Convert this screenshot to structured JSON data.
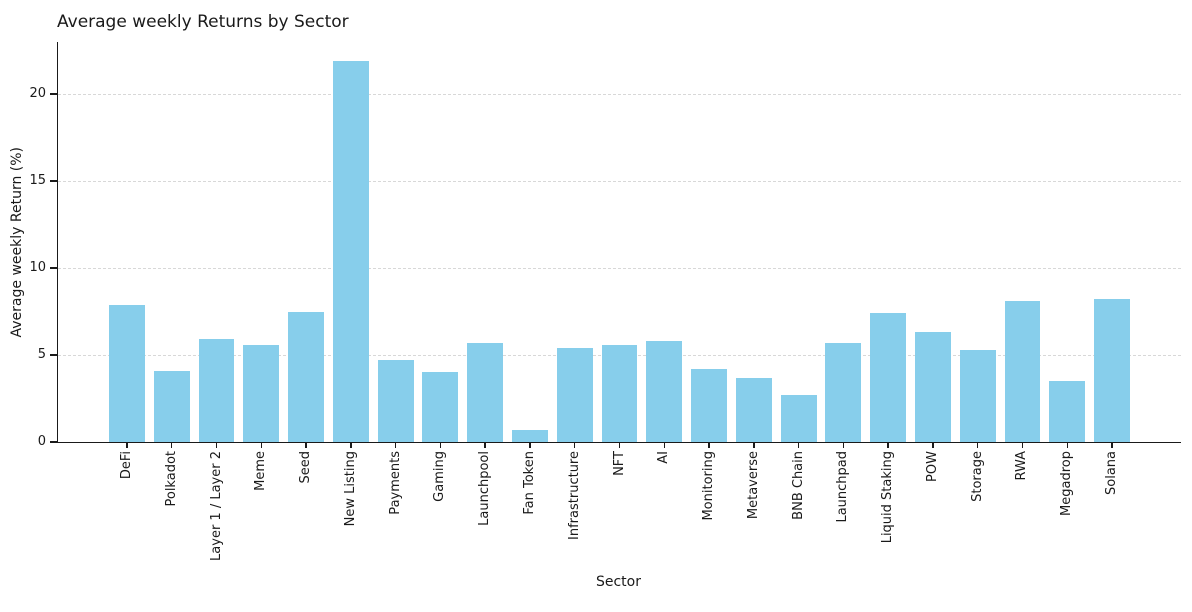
{
  "chart_data": {
    "type": "bar",
    "title": "Average weekly Returns by Sector",
    "xlabel": "Sector",
    "ylabel": "Average weekly Return (%)",
    "categories": [
      "DeFi",
      "Polkadot",
      "Layer 1 / Layer 2",
      "Meme",
      "Seed",
      "New Listing",
      "Payments",
      "Gaming",
      "Launchpool",
      "Fan Token",
      "Infrastructure",
      "NFT",
      "AI",
      "Monitoring",
      "Metaverse",
      "BNB Chain",
      "Launchpad",
      "Liquid Staking",
      "POW",
      "Storage",
      "RWA",
      "Megadrop",
      "Solana"
    ],
    "values": [
      7.9,
      4.1,
      5.9,
      5.6,
      7.5,
      21.9,
      4.7,
      4.0,
      5.7,
      0.7,
      5.4,
      5.6,
      5.8,
      4.2,
      3.7,
      2.7,
      5.7,
      7.4,
      6.3,
      5.3,
      8.1,
      3.5,
      8.2
    ],
    "yticks": [
      0,
      5,
      10,
      15,
      20
    ],
    "ylim": [
      0,
      23
    ],
    "grid": "horizontal dashed",
    "legend": "none",
    "bar_color": "#87CEEB",
    "grid_color": "#d8d8d8",
    "axis_color": "#1a1a1a",
    "text_color": "#1a1a1a"
  }
}
